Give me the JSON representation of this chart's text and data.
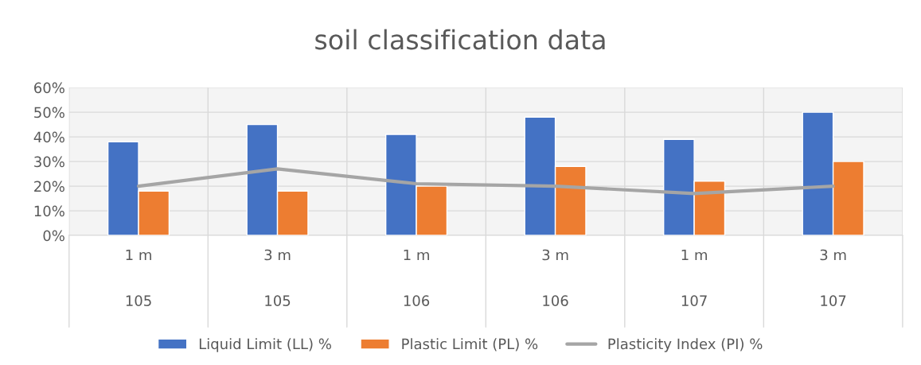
{
  "chart_data": {
    "type": "bar",
    "title": "soil classification data",
    "categories": [
      "1 m\n105",
      "3 m\n105",
      "1 m\n106",
      "3 m\n106",
      "1 m\n107",
      "3 m\n107"
    ],
    "series": [
      {
        "name": "Liquid Limit (LL) %",
        "color": "#4472c4",
        "values": [
          38,
          45,
          41,
          48,
          39,
          50
        ]
      },
      {
        "name": "Plastic Limit (PL) %",
        "color": "#ed7d31",
        "values": [
          18,
          18,
          20,
          28,
          22,
          30
        ]
      },
      {
        "name": "Plasticity Index (PI) %",
        "color": "#a5a5a5",
        "type": "line",
        "values": [
          20,
          27,
          21,
          20,
          17,
          20
        ]
      }
    ],
    "ylim": [
      0,
      60
    ],
    "yticks": [
      {
        "value": 0,
        "label": "0%"
      },
      {
        "value": 10,
        "label": "10%"
      },
      {
        "value": 20,
        "label": "20%"
      },
      {
        "value": 30,
        "label": "30%"
      },
      {
        "value": 40,
        "label": "40%"
      },
      {
        "value": 50,
        "label": "50%"
      },
      {
        "value": 60,
        "label": "60%"
      }
    ],
    "grid": true,
    "legend": "bottom",
    "marker": "none"
  }
}
